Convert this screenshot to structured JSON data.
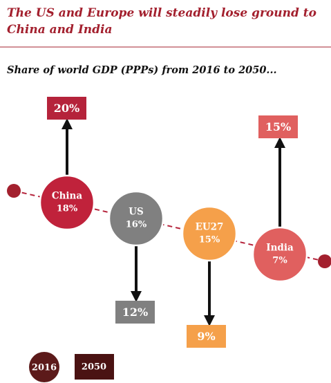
{
  "header": {
    "title_lines": [
      "The US and Europe will steadily lose ground to",
      "China and India"
    ],
    "subtitle": "Share of world GDP (PPPs) from 2016 to 2050..."
  },
  "nodes": [
    {
      "label": "China",
      "share_2016": "18%",
      "share_2050": "20%"
    },
    {
      "label": "US",
      "share_2016": "16%",
      "share_2050": "12%"
    },
    {
      "label": "EU27",
      "share_2016": "15%",
      "share_2050": "9%"
    },
    {
      "label": "India",
      "share_2016": "7%",
      "share_2050": "15%"
    }
  ],
  "legend": [
    "2016",
    "2050"
  ]
}
